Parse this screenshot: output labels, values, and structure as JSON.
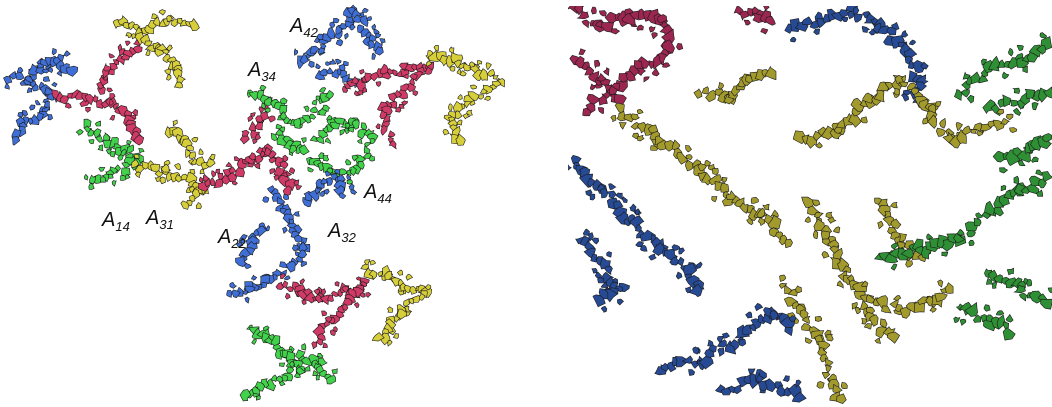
{
  "figure": {
    "colors": {
      "red": "#d03a66",
      "blue": "#3f6fd6",
      "green": "#42d14a",
      "yellow": "#d7cf3a",
      "dark_red": "#9b2751",
      "dark_blue": "#274a94",
      "dark_green": "#2e8f34",
      "olive": "#a29a2c",
      "outline": "#1a1a1a"
    },
    "labels": [
      {
        "id": "A42",
        "base": "A",
        "sub": "42"
      },
      {
        "id": "A34",
        "base": "A",
        "sub": "34"
      },
      {
        "id": "A44",
        "base": "A",
        "sub": "44"
      },
      {
        "id": "A14",
        "base": "A",
        "sub": "14"
      },
      {
        "id": "A31",
        "base": "A",
        "sub": "31"
      },
      {
        "id": "A22",
        "base": "A",
        "sub": "22"
      },
      {
        "id": "A32",
        "base": "A",
        "sub": "32"
      }
    ]
  }
}
